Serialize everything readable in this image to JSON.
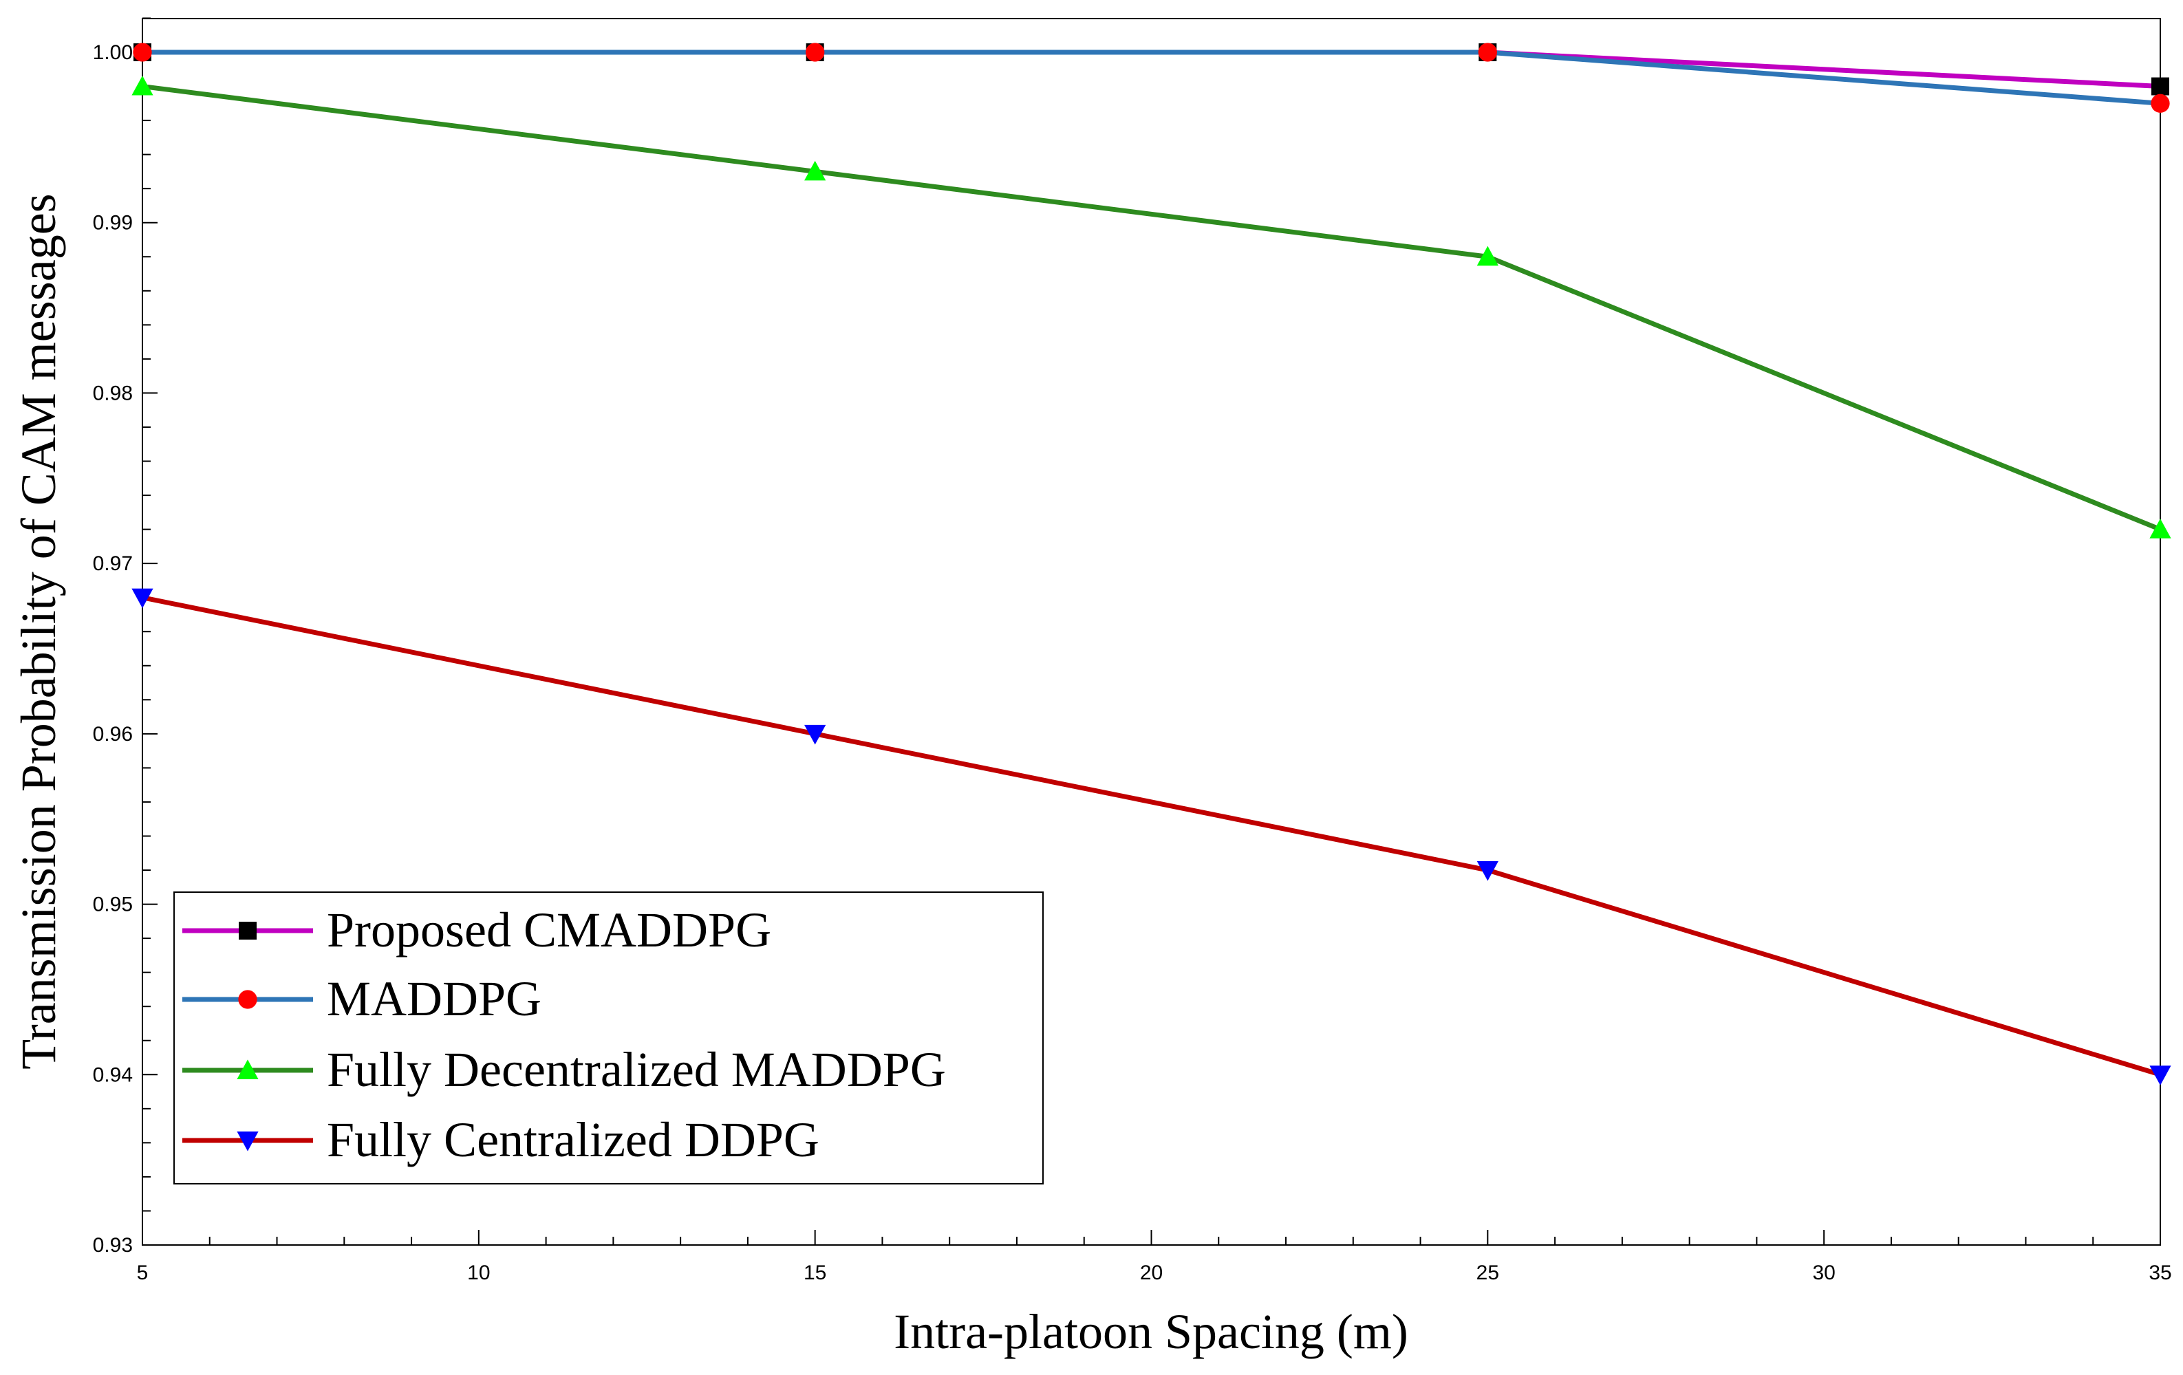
{
  "chart_data": {
    "type": "line",
    "title": "",
    "xlabel": "Intra-platoon Spacing (m)",
    "ylabel": "Transmission Probability of CAM messages",
    "xlim": [
      5,
      35
    ],
    "ylim": [
      0.93,
      1.002
    ],
    "x_ticks": [
      5,
      10,
      15,
      20,
      25,
      30,
      35
    ],
    "x_tick_labels": [
      "5",
      "10",
      "15",
      "20",
      "25",
      "30",
      "35"
    ],
    "y_ticks": [
      0.93,
      0.94,
      0.95,
      0.96,
      0.97,
      0.98,
      0.99,
      1.0
    ],
    "y_tick_labels": [
      "0.93",
      "0.94",
      "0.95",
      "0.96",
      "0.97",
      "0.98",
      "0.99",
      "1.00"
    ],
    "x_minor_step": 1,
    "y_minor_step": 0.002,
    "grid": false,
    "legend_position": "bottom-left",
    "x": [
      5,
      15,
      25,
      35
    ],
    "series": [
      {
        "name": "Proposed CMADDPG",
        "values": [
          1.0,
          1.0,
          1.0,
          0.998
        ],
        "color": "#C000C0",
        "marker": "square",
        "marker_color": "#000000"
      },
      {
        "name": "MADDPG",
        "values": [
          1.0,
          1.0,
          1.0,
          0.997
        ],
        "color": "#2E75B6",
        "marker": "circle",
        "marker_color": "#FF0000"
      },
      {
        "name": "Fully Decentralized MADDPG",
        "values": [
          0.998,
          0.993,
          0.988,
          0.972
        ],
        "color": "#2E8B1F",
        "marker": "triangle-up",
        "marker_color": "#00FF00"
      },
      {
        "name": "Fully Centralized DDPG",
        "values": [
          0.968,
          0.96,
          0.952,
          0.94
        ],
        "color": "#C00000",
        "marker": "triangle-down",
        "marker_color": "#0000FF"
      }
    ]
  }
}
